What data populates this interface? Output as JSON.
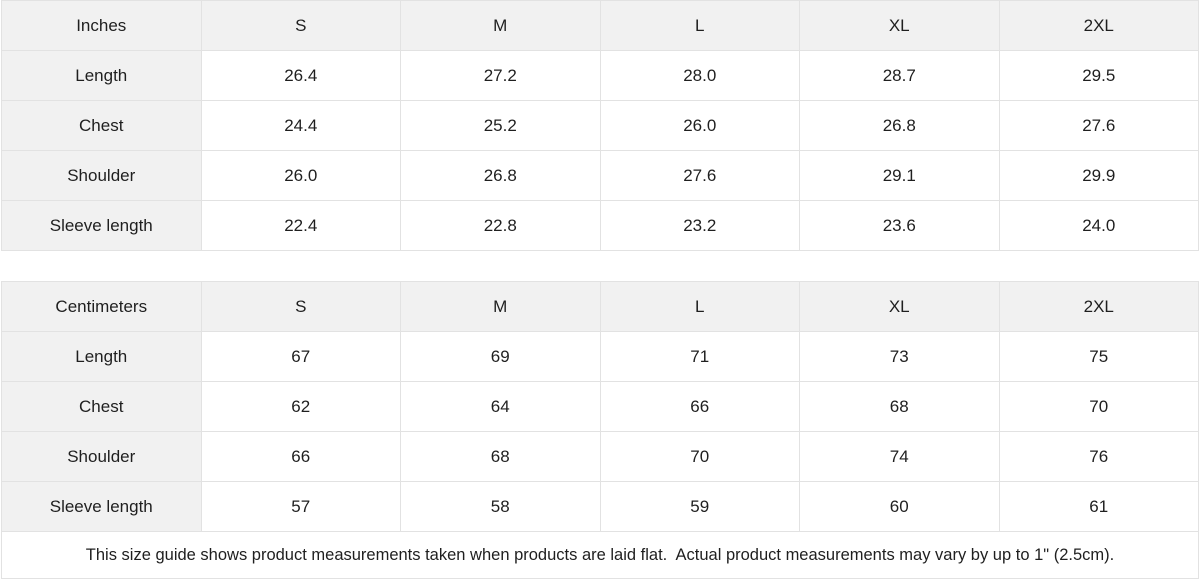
{
  "colors": {
    "background": "#ffffff",
    "shaded_cell": "#f1f1f1",
    "border": "#e2e2e2",
    "text": "#1f1f1f"
  },
  "tables": [
    {
      "unit_label": "Inches",
      "sizes": [
        "S",
        "M",
        "L",
        "XL",
        "2XL"
      ],
      "rows": [
        {
          "label": "Length",
          "values": [
            "26.4",
            "27.2",
            "28.0",
            "28.7",
            "29.5"
          ]
        },
        {
          "label": "Chest",
          "values": [
            "24.4",
            "25.2",
            "26.0",
            "26.8",
            "27.6"
          ]
        },
        {
          "label": "Shoulder",
          "values": [
            "26.0",
            "26.8",
            "27.6",
            "29.1",
            "29.9"
          ]
        },
        {
          "label": "Sleeve length",
          "values": [
            "22.4",
            "22.8",
            "23.2",
            "23.6",
            "24.0"
          ]
        }
      ]
    },
    {
      "unit_label": "Centimeters",
      "sizes": [
        "S",
        "M",
        "L",
        "XL",
        "2XL"
      ],
      "rows": [
        {
          "label": "Length",
          "values": [
            "67",
            "69",
            "71",
            "73",
            "75"
          ]
        },
        {
          "label": "Chest",
          "values": [
            "62",
            "64",
            "66",
            "68",
            "70"
          ]
        },
        {
          "label": "Shoulder",
          "values": [
            "66",
            "68",
            "70",
            "74",
            "76"
          ]
        },
        {
          "label": "Sleeve length",
          "values": [
            "57",
            "58",
            "59",
            "60",
            "61"
          ]
        }
      ]
    }
  ],
  "footer": {
    "note": "This size guide shows product measurements taken when products are laid flat.  Actual product measurements may vary by up to 1\" (2.5cm)."
  }
}
